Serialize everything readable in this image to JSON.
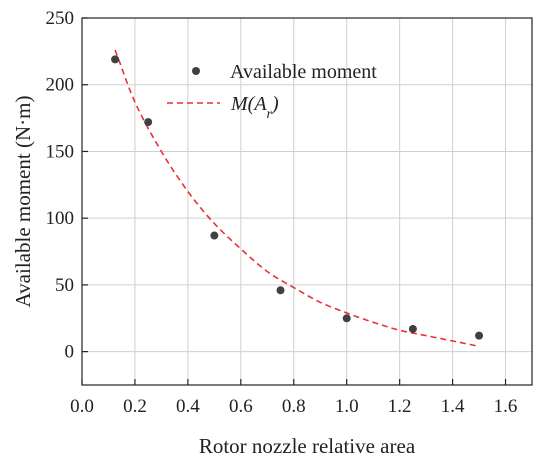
{
  "chart_data": {
    "type": "scatter",
    "xlabel": "Rotor nozzle relative area",
    "ylabel": "Available moment (N·m)",
    "xlim": [
      0.0,
      1.7
    ],
    "ylim": [
      -25,
      250
    ],
    "x_ticks": [
      "0.0",
      "0.2",
      "0.4",
      "0.6",
      "0.8",
      "1.0",
      "1.2",
      "1.4",
      "1.6"
    ],
    "y_ticks": [
      "0",
      "50",
      "100",
      "150",
      "200",
      "250"
    ],
    "grid": true,
    "legend_position": "top-right",
    "series": [
      {
        "name": "Available moment",
        "kind": "scatter",
        "color": "#404040",
        "x": [
          0.125,
          0.25,
          0.5,
          0.75,
          1.0,
          1.25,
          1.5
        ],
        "y": [
          219,
          172,
          87,
          46,
          25,
          17,
          12
        ]
      },
      {
        "name": "M(A_r)",
        "kind": "fit-curve",
        "color": "#e8303a",
        "style": "dashed",
        "x": [
          0.125,
          0.2,
          0.3,
          0.4,
          0.5,
          0.6,
          0.7,
          0.8,
          0.9,
          1.0,
          1.1,
          1.2,
          1.3,
          1.4,
          1.5
        ],
        "y": [
          226,
          187,
          150,
          120,
          96,
          77,
          60,
          48,
          37,
          29,
          22,
          16,
          12,
          8,
          4
        ]
      }
    ],
    "legend": {
      "scatter_label": "Available moment",
      "curve_label_main": "M(A",
      "curve_label_sub": "r",
      "curve_label_end": ")"
    }
  }
}
